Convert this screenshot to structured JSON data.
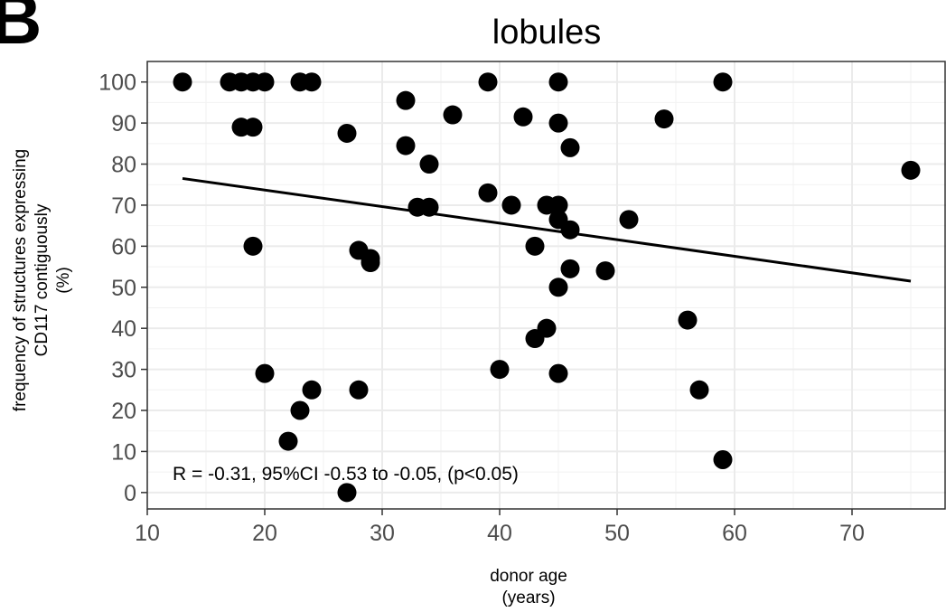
{
  "panel_label": "B",
  "chart_data": {
    "type": "scatter",
    "title": "lobules",
    "xlabel": [
      "donor age",
      "(years)"
    ],
    "ylabel": [
      "frequency of structures expressing",
      "CD117 contiguously",
      "(%)"
    ],
    "xlim": [
      10,
      78
    ],
    "ylim": [
      -4,
      105
    ],
    "x_ticks": [
      10,
      20,
      30,
      40,
      50,
      60,
      70
    ],
    "y_ticks": [
      0,
      10,
      20,
      30,
      40,
      50,
      60,
      70,
      80,
      90,
      100
    ],
    "grid": true,
    "annotation": "R = -0.31,  95%CI -0.53 to -0.05, (p<0.05)",
    "points": [
      [
        13,
        100
      ],
      [
        17,
        100
      ],
      [
        18,
        100
      ],
      [
        19,
        100
      ],
      [
        20,
        100
      ],
      [
        23,
        100
      ],
      [
        24,
        100
      ],
      [
        18,
        89
      ],
      [
        19,
        89
      ],
      [
        19,
        60
      ],
      [
        20,
        29
      ],
      [
        22,
        12.5
      ],
      [
        23,
        20
      ],
      [
        24,
        25
      ],
      [
        27,
        87.5
      ],
      [
        27,
        0
      ],
      [
        28,
        59
      ],
      [
        28,
        25
      ],
      [
        29,
        57
      ],
      [
        29,
        56
      ],
      [
        32,
        95.5
      ],
      [
        32,
        84.5
      ],
      [
        33,
        69.5
      ],
      [
        34,
        80
      ],
      [
        34,
        69.5
      ],
      [
        36,
        92
      ],
      [
        39,
        100
      ],
      [
        39,
        73
      ],
      [
        40,
        30
      ],
      [
        41,
        70
      ],
      [
        42,
        91.5
      ],
      [
        43,
        60
      ],
      [
        43,
        37.5
      ],
      [
        44,
        70
      ],
      [
        44,
        40
      ],
      [
        45,
        100
      ],
      [
        45,
        90
      ],
      [
        45,
        70
      ],
      [
        45,
        66.5
      ],
      [
        45,
        50
      ],
      [
        45,
        29
      ],
      [
        46,
        84
      ],
      [
        46,
        64
      ],
      [
        46,
        54.5
      ],
      [
        49,
        54
      ],
      [
        51,
        66.5
      ],
      [
        54,
        91
      ],
      [
        56,
        42
      ],
      [
        57,
        25
      ],
      [
        59,
        100
      ],
      [
        59,
        8
      ],
      [
        75,
        78.5
      ]
    ],
    "trend_line": {
      "x": [
        13,
        75
      ],
      "y": [
        76.5,
        51.5
      ]
    }
  }
}
